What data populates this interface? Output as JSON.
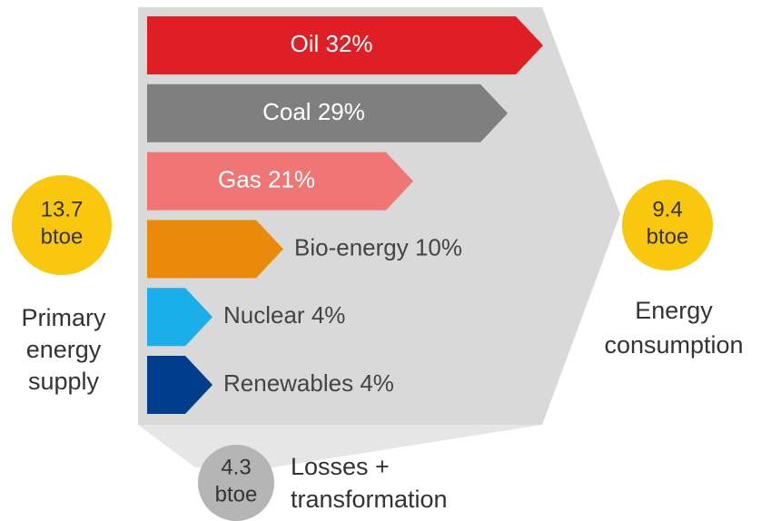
{
  "chart_data": {
    "type": "arrow-bar",
    "categories": [
      "Oil",
      "Coal",
      "Gas",
      "Bio-energy",
      "Nuclear",
      "Renewables"
    ],
    "values": [
      32,
      29,
      21,
      10,
      4,
      4
    ],
    "value_labels": [
      "32%",
      "29%",
      "21%",
      "10%",
      "4%",
      "4%"
    ],
    "colors": [
      "#e01e25",
      "#7f7f7f",
      "#f07575",
      "#ea8a0a",
      "#1aaeeb",
      "#003d8c"
    ],
    "annotations": [
      {
        "value": 13.7,
        "unit": "btoe",
        "label": [
          "Primary",
          "energy",
          "supply"
        ]
      },
      {
        "value": 9.4,
        "unit": "btoe",
        "label": [
          "Energy",
          "consumption"
        ]
      },
      {
        "value": 4.3,
        "unit": "btoe",
        "label": [
          "Losses +",
          "transformation"
        ]
      }
    ]
  }
}
